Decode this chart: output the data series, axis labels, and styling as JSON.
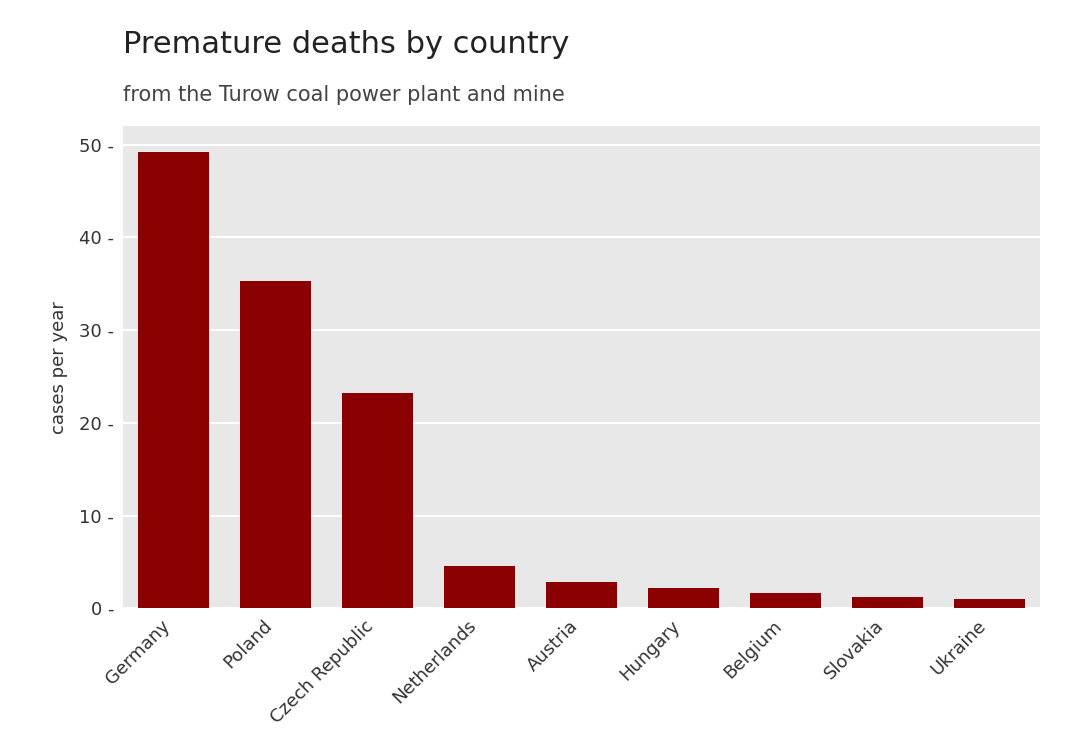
{
  "title": "Premature deaths by country",
  "subtitle": "from the Turow coal power plant and mine",
  "categories": [
    "Germany",
    "Poland",
    "Czech Republic",
    "Netherlands",
    "Austria",
    "Hungary",
    "Belgium",
    "Slovakia",
    "Ukraine"
  ],
  "values": [
    49.2,
    35.3,
    23.2,
    4.6,
    2.9,
    2.2,
    1.7,
    1.2,
    1.0
  ],
  "bar_color": "#8B0000",
  "ylabel": "cases per year",
  "ylim": [
    0,
    52
  ],
  "yticks": [
    0,
    10,
    20,
    30,
    40,
    50
  ],
  "ytick_labels": [
    "0 -",
    "10 -",
    "20 -",
    "30 -",
    "40 -",
    "50 -"
  ],
  "plot_bg_color": "#E8E8E8",
  "fig_bg_color": "#FFFFFF",
  "title_fontsize": 22,
  "subtitle_fontsize": 15,
  "ylabel_fontsize": 13,
  "tick_fontsize": 13,
  "grid_color": "#FFFFFF",
  "grid_linewidth": 1.5
}
